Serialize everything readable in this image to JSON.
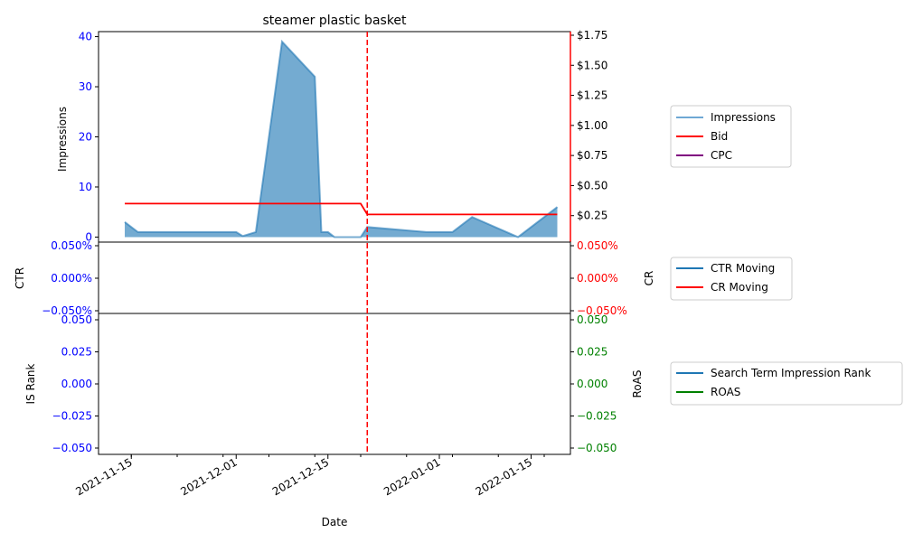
{
  "chart_data": {
    "type": "area",
    "title": "steamer plastic basket",
    "xlabel": "Date",
    "x_ticks": [
      "2021-11-15",
      "2021-12-01",
      "2021-12-15",
      "2022-01-01",
      "2022-01-15"
    ],
    "x_range": [
      "2021-11-10",
      "2022-01-21"
    ],
    "event_line_date": "2021-12-21",
    "colors": {
      "impressions": "#1f77b4",
      "bid": "#ff0000",
      "cpc": "#800080",
      "ctr": "#1f77b4",
      "cr": "#ff0000",
      "rank": "#1f77b4",
      "roas": "#008000",
      "left_tick": "#0000ff",
      "right_tick_red": "#ff0000",
      "right_tick_green": "#008000"
    },
    "panels": {
      "top": {
        "ylabel_left": "Impressions",
        "yticks_left": [
          "0",
          "10",
          "20",
          "30",
          "40"
        ],
        "ylim_left": [
          -1,
          41
        ],
        "yticks_right": [
          "$0.25",
          "$0.50",
          "$0.75",
          "$1.00",
          "$1.25",
          "$1.50",
          "$1.75"
        ],
        "ylim_right": [
          0.03,
          1.78
        ],
        "legend": [
          "Impressions",
          "Bid",
          "CPC"
        ],
        "impressions": {
          "x": [
            "2021-11-14",
            "2021-11-16",
            "2021-11-20",
            "2021-11-25",
            "2021-12-01",
            "2021-12-02",
            "2021-12-04",
            "2021-12-08",
            "2021-12-13",
            "2021-12-14",
            "2021-12-15",
            "2021-12-16",
            "2021-12-20",
            "2021-12-21",
            "2021-12-30",
            "2022-01-03",
            "2022-01-06",
            "2022-01-13",
            "2022-01-19"
          ],
          "values": [
            3,
            1,
            1,
            1,
            1,
            0.2,
            1,
            39,
            32,
            1,
            1,
            0,
            0,
            2,
            1,
            1,
            4,
            0,
            6
          ]
        },
        "bid": {
          "x": [
            "2021-11-14",
            "2021-12-20",
            "2021-12-21",
            "2022-01-19"
          ],
          "values": [
            0.35,
            0.35,
            0.26,
            0.26
          ]
        }
      },
      "middle": {
        "ylabel_left": "CTR",
        "ylabel_right": "CR",
        "yticks_left": [
          "0.050%",
          "0.000%",
          "−0.050%"
        ],
        "yticks_right": [
          "0.050%",
          "0.000%",
          "−0.050%"
        ],
        "legend": [
          "CTR Moving",
          "CR Moving"
        ]
      },
      "bottom": {
        "ylabel_left": "IS Rank",
        "ylabel_right": "RoAS",
        "yticks_left": [
          "0.050",
          "0.025",
          "0.000",
          "−0.025",
          "−0.050"
        ],
        "yticks_right": [
          "0.050",
          "0.025",
          "0.000",
          "−0.025",
          "−0.050"
        ],
        "legend": [
          "Search Term Impression Rank",
          "ROAS"
        ]
      }
    }
  }
}
